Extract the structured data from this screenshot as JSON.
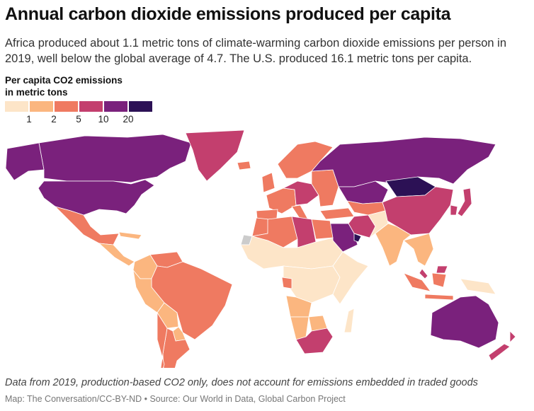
{
  "title": "Annual carbon dioxide emissions produced per capita",
  "subtitle": "Africa produced about 1.1 metric tons of climate-warming carbon dioxide emissions per person in 2019, well below the global average of 4.7. The U.S. produced 16.1 metric tons per capita.",
  "legend": {
    "title_line1": "Per capita CO2 emissions",
    "title_line2": "in metric tons",
    "colors": [
      "#fde5c8",
      "#fbb67f",
      "#ef7a61",
      "#c33f6e",
      "#7a217c",
      "#2c1155"
    ],
    "thresholds": [
      "1",
      "2",
      "5",
      "10",
      "20"
    ]
  },
  "map": {
    "no_data_color": "#cccccc",
    "border_color": "#ffffff",
    "regions": [
      {
        "id": "canada",
        "bin": 4
      },
      {
        "id": "alaska",
        "bin": 4
      },
      {
        "id": "usa",
        "bin": 4
      },
      {
        "id": "greenland",
        "bin": 3
      },
      {
        "id": "mexico",
        "bin": 2
      },
      {
        "id": "central-america",
        "bin": 1
      },
      {
        "id": "cuba",
        "bin": 1
      },
      {
        "id": "colombia",
        "bin": 1
      },
      {
        "id": "venezuela",
        "bin": 2
      },
      {
        "id": "brazil",
        "bin": 2
      },
      {
        "id": "peru",
        "bin": 1
      },
      {
        "id": "bolivia",
        "bin": 1
      },
      {
        "id": "paraguay",
        "bin": 1
      },
      {
        "id": "argentina",
        "bin": 2
      },
      {
        "id": "chile",
        "bin": 2
      },
      {
        "id": "scandinavia",
        "bin": 2
      },
      {
        "id": "uk",
        "bin": 2
      },
      {
        "id": "western-europe",
        "bin": 2
      },
      {
        "id": "central-europe",
        "bin": 3
      },
      {
        "id": "iberia",
        "bin": 2
      },
      {
        "id": "italy",
        "bin": 2
      },
      {
        "id": "eastern-europe",
        "bin": 2
      },
      {
        "id": "russia",
        "bin": 4
      },
      {
        "id": "kazakhstan",
        "bin": 4
      },
      {
        "id": "turkey",
        "bin": 2
      },
      {
        "id": "central-asia",
        "bin": 2
      },
      {
        "id": "mongolia",
        "bin": 5
      },
      {
        "id": "china",
        "bin": 3
      },
      {
        "id": "korea-japan",
        "bin": 3
      },
      {
        "id": "iran",
        "bin": 3
      },
      {
        "id": "saudi-arabia",
        "bin": 4
      },
      {
        "id": "gulf",
        "bin": 5
      },
      {
        "id": "pakistan",
        "bin": 0
      },
      {
        "id": "india",
        "bin": 1
      },
      {
        "id": "southeast-asia",
        "bin": 1
      },
      {
        "id": "malaysia",
        "bin": 3
      },
      {
        "id": "indonesia",
        "bin": 2
      },
      {
        "id": "new-guinea",
        "bin": 0
      },
      {
        "id": "australia",
        "bin": 4
      },
      {
        "id": "new-zealand",
        "bin": 3
      },
      {
        "id": "morocco",
        "bin": 2
      },
      {
        "id": "western-sahara",
        "bin": -1
      },
      {
        "id": "algeria",
        "bin": 2
      },
      {
        "id": "libya",
        "bin": 3
      },
      {
        "id": "egypt",
        "bin": 2
      },
      {
        "id": "sahel-africa",
        "bin": 0
      },
      {
        "id": "central-africa",
        "bin": 0
      },
      {
        "id": "east-africa",
        "bin": 0
      },
      {
        "id": "angola",
        "bin": 1
      },
      {
        "id": "namibia",
        "bin": 1
      },
      {
        "id": "botswana",
        "bin": 1
      },
      {
        "id": "south-africa",
        "bin": 3
      },
      {
        "id": "madagascar",
        "bin": 0
      },
      {
        "id": "gabon",
        "bin": 2
      },
      {
        "id": "iceland",
        "bin": 2
      }
    ]
  },
  "footer": {
    "note": "Data from 2019, production-based CO2 only, does not account for emissions embedded in traded goods",
    "source": "Map: The Conversation/CC-BY-ND • Source: Our World in Data, Global Carbon Project"
  }
}
